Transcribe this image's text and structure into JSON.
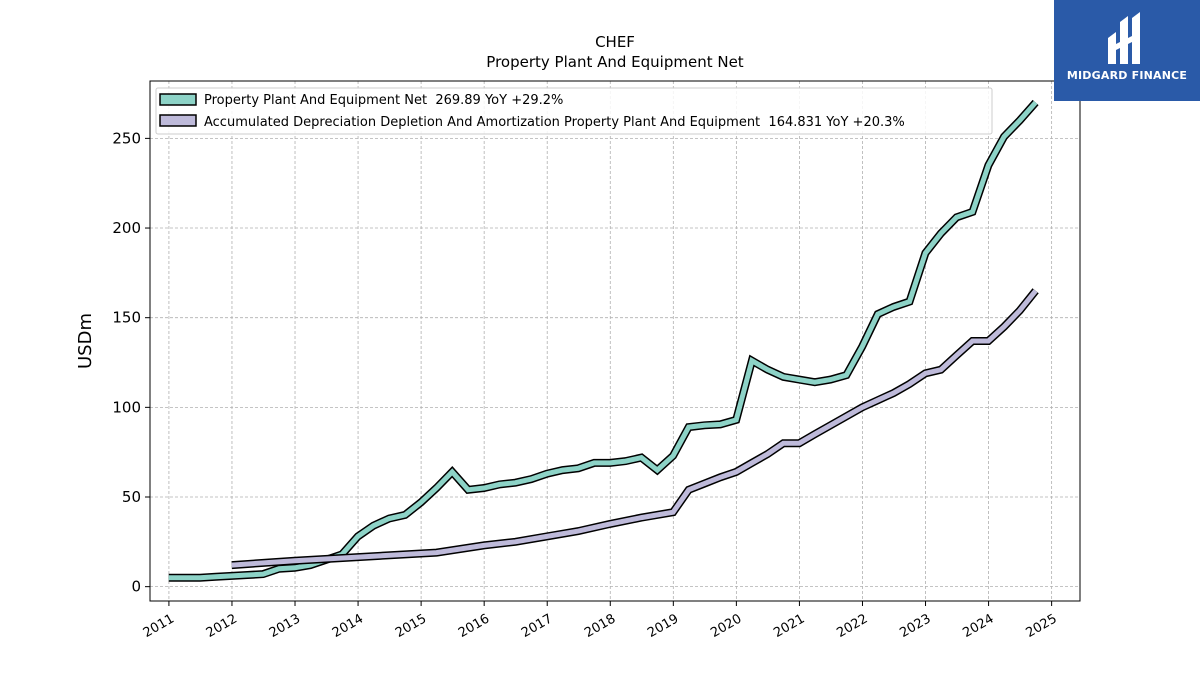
{
  "logo": {
    "text": "MIDGARD FINANCE"
  },
  "chart_data": {
    "type": "line",
    "title": "CHEF",
    "subtitle": "Property Plant And Equipment Net",
    "xlabel": "",
    "ylabel": "USDm",
    "ylim": [
      -8,
      282
    ],
    "xlim": [
      2010.7,
      2025.45
    ],
    "yticks": [
      0,
      50,
      100,
      150,
      200,
      250
    ],
    "xticks": [
      "2011",
      "2012",
      "2013",
      "2014",
      "2015",
      "2016",
      "2017",
      "2018",
      "2019",
      "2020",
      "2021",
      "2022",
      "2023",
      "2024",
      "2025"
    ],
    "grid": true,
    "legend_position": "top-left",
    "colors": {
      "ppe": "#8dd3c7",
      "dep": "#bebada",
      "outline": "#000000"
    },
    "series": [
      {
        "name": "Property Plant And Equipment Net  269.89 YoY +29.2%",
        "color": "#8dd3c7",
        "points": [
          [
            "2010-12-31",
            5
          ],
          [
            "2011-03-31",
            5
          ],
          [
            "2011-06-30",
            5
          ],
          [
            "2011-09-30",
            5.5
          ],
          [
            "2011-12-31",
            6
          ],
          [
            "2012-03-31",
            6.5
          ],
          [
            "2012-06-30",
            7
          ],
          [
            "2012-09-30",
            10
          ],
          [
            "2012-12-31",
            10.5
          ],
          [
            "2013-03-31",
            12
          ],
          [
            "2013-06-30",
            15
          ],
          [
            "2013-09-30",
            18
          ],
          [
            "2013-12-31",
            28
          ],
          [
            "2014-03-31",
            34
          ],
          [
            "2014-06-30",
            38
          ],
          [
            "2014-09-30",
            40
          ],
          [
            "2014-12-31",
            47
          ],
          [
            "2015-03-31",
            55
          ],
          [
            "2015-06-30",
            64
          ],
          [
            "2015-09-30",
            54
          ],
          [
            "2015-12-31",
            55
          ],
          [
            "2016-03-31",
            57
          ],
          [
            "2016-06-30",
            58
          ],
          [
            "2016-09-30",
            60
          ],
          [
            "2016-12-31",
            63
          ],
          [
            "2017-03-31",
            65
          ],
          [
            "2017-06-30",
            66
          ],
          [
            "2017-09-30",
            69
          ],
          [
            "2017-12-31",
            69
          ],
          [
            "2018-03-31",
            70
          ],
          [
            "2018-06-30",
            72
          ],
          [
            "2018-09-30",
            65
          ],
          [
            "2018-12-31",
            73
          ],
          [
            "2019-03-31",
            89
          ],
          [
            "2019-06-30",
            90
          ],
          [
            "2019-09-30",
            90.5
          ],
          [
            "2019-12-31",
            93
          ],
          [
            "2020-03-31",
            126
          ],
          [
            "2020-06-30",
            121
          ],
          [
            "2020-09-30",
            117
          ],
          [
            "2020-12-31",
            115.5
          ],
          [
            "2021-03-31",
            114
          ],
          [
            "2021-06-30",
            115.5
          ],
          [
            "2021-09-30",
            118
          ],
          [
            "2021-12-31",
            134
          ],
          [
            "2022-03-31",
            152
          ],
          [
            "2022-06-30",
            156
          ],
          [
            "2022-09-30",
            159
          ],
          [
            "2022-12-31",
            186
          ],
          [
            "2023-03-31",
            197
          ],
          [
            "2023-06-30",
            206
          ],
          [
            "2023-09-30",
            209
          ],
          [
            "2023-12-31",
            235
          ],
          [
            "2024-03-31",
            251
          ],
          [
            "2024-06-30",
            260
          ],
          [
            "2024-09-30",
            270
          ]
        ]
      },
      {
        "name": "Accumulated Depreciation Depletion And Amortization Property Plant And Equipment  164.831 YoY +20.3%",
        "color": "#bebada",
        "points": [
          [
            "2011-12-31",
            12
          ],
          [
            "2012-12-31",
            14.5
          ],
          [
            "2013-12-31",
            16.5
          ],
          [
            "2014-12-31",
            18.5
          ],
          [
            "2015-03-31",
            19
          ],
          [
            "2015-12-31",
            23
          ],
          [
            "2016-06-30",
            25
          ],
          [
            "2016-12-31",
            28
          ],
          [
            "2017-06-30",
            31
          ],
          [
            "2017-12-31",
            35
          ],
          [
            "2018-06-30",
            38.5
          ],
          [
            "2018-12-31",
            41.5
          ],
          [
            "2019-03-31",
            54
          ],
          [
            "2019-06-30",
            57.5
          ],
          [
            "2019-09-30",
            61
          ],
          [
            "2019-12-31",
            64
          ],
          [
            "2020-03-31",
            69
          ],
          [
            "2020-06-30",
            74
          ],
          [
            "2020-09-30",
            80
          ],
          [
            "2020-12-31",
            80
          ],
          [
            "2021-03-31",
            85
          ],
          [
            "2021-06-30",
            90
          ],
          [
            "2021-09-30",
            95
          ],
          [
            "2021-12-31",
            100
          ],
          [
            "2022-03-31",
            104
          ],
          [
            "2022-06-30",
            108
          ],
          [
            "2022-09-30",
            113
          ],
          [
            "2022-12-31",
            119
          ],
          [
            "2023-03-31",
            121
          ],
          [
            "2023-06-30",
            129
          ],
          [
            "2023-09-30",
            137
          ],
          [
            "2023-12-31",
            137
          ],
          [
            "2024-03-31",
            145
          ],
          [
            "2024-06-30",
            154
          ],
          [
            "2024-09-30",
            165
          ]
        ]
      }
    ]
  }
}
